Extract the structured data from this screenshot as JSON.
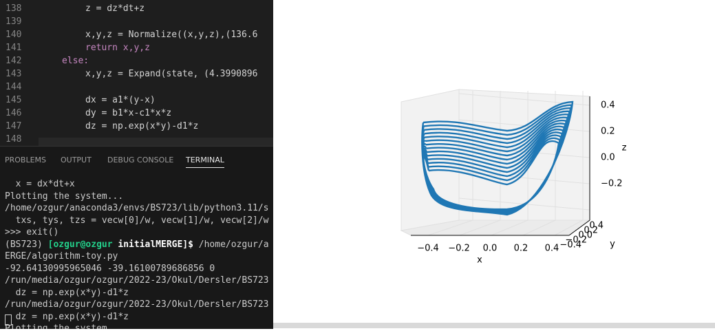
{
  "editor": {
    "lines": [
      {
        "num": "138",
        "text": "z = dz*dt+z",
        "indent": 2
      },
      {
        "num": "139"
      },
      {
        "num": "140",
        "text": "x,y,z = Normalize((x,y,z),(136.6",
        "indent": 2
      },
      {
        "num": "141",
        "text": "return x,y,z",
        "indent": 2,
        "color": "#c586c0"
      },
      {
        "num": "142",
        "text": "else:",
        "indent": 1,
        "color": "#c586c0"
      },
      {
        "num": "143",
        "text": "x,y,z = Expand(state, (4.3990896",
        "indent": 2
      },
      {
        "num": "144"
      },
      {
        "num": "145",
        "text": "dx = a1*(y-x)",
        "indent": 2
      },
      {
        "num": "146",
        "text": "dy = b1*x-c1*x*z",
        "indent": 2
      },
      {
        "num": "147",
        "text": "dz = np.exp(x*y)-d1*z",
        "indent": 2
      },
      {
        "num": "148"
      }
    ]
  },
  "panel_tabs": [
    "PROBLEMS",
    "OUTPUT",
    "DEBUG CONSOLE",
    "TERMINAL"
  ],
  "terminal": {
    "lines": [
      [
        "  x = dx*dt+x"
      ],
      [
        "Plotting the system..."
      ],
      [
        "/home/ozgur/anaconda3/envs/BS723/lib/python3.11/s"
      ],
      [
        "  txs, tys, tzs = vecw[0]/w, vecw[1]/w, vecw[2]/w"
      ],
      [
        ">>> exit()"
      ],
      [
        "(BS723) ",
        "[ozgur@ozgur ",
        "initialMERGE]$",
        " /home/ozgur/a"
      ],
      [
        "ERGE/algorithm-toy.py"
      ],
      [
        "-92.64130995965046 -39.16100789686856 0"
      ],
      [
        "/run/media/ozgur/ozgur/2022-23/Okul/Dersler/BS723"
      ],
      [
        "  dz = np.exp(x*y)-d1*z"
      ],
      [
        "/run/media/ozgur/ozgur/2022-23/Okul/Dersler/BS723"
      ],
      [
        "  dz = np.exp(x*y)-d1*z"
      ],
      [
        "Plotting the system..."
      ]
    ]
  },
  "plot": {
    "x_label": "x",
    "y_label": "y",
    "z_label": "z",
    "x_ticks": [
      "−0.4",
      "−0.2",
      "0.0",
      "0.2",
      "0.4"
    ],
    "y_ticks": [
      "0.4",
      "0.2",
      "0.0",
      "−0.2",
      "−0.4"
    ],
    "z_ticks": [
      "0.4",
      "0.2",
      "0.0",
      "−0.2"
    ],
    "color": "#1f77b4"
  }
}
